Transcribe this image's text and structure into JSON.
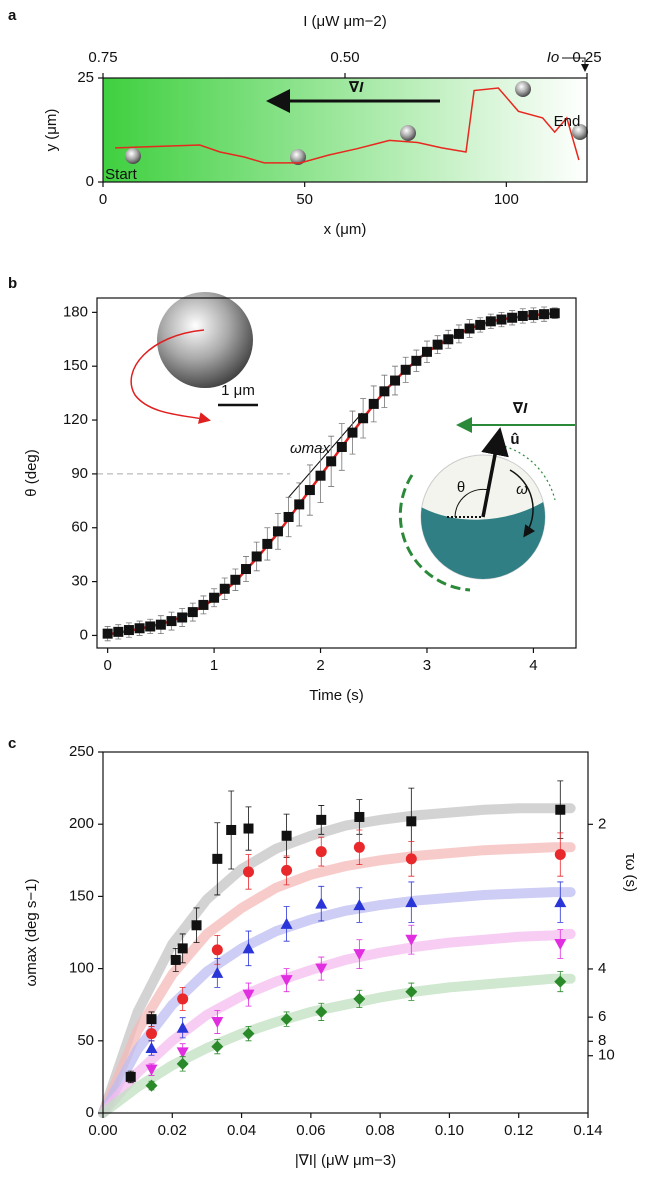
{
  "chart_data": [
    {
      "type": "line",
      "panel": "a",
      "x": [
        3,
        12,
        24,
        29,
        35,
        40,
        49,
        56,
        63,
        71,
        78,
        84,
        90,
        92,
        98,
        103,
        109,
        112,
        115,
        118
      ],
      "values": [
        8.2,
        8.5,
        8.9,
        7.2,
        6.0,
        4.6,
        4.6,
        6.5,
        8.0,
        10.0,
        9.5,
        8.2,
        7.2,
        22.0,
        22.6,
        17.0,
        15.4,
        12.0,
        15.4,
        5.3
      ],
      "color": "#e8281e",
      "xlabel": "x (μm)",
      "ylabel": "y (μm)",
      "x2label": "I (μW μm−2)",
      "xlim": [
        0,
        120
      ],
      "xticks": [
        0,
        50,
        100
      ],
      "ylim": [
        0,
        25
      ],
      "yticks": [
        0,
        25
      ],
      "x2lim": [
        0.75,
        0.25
      ],
      "x2ticks": [
        {
          "value": 0.75,
          "label": "0.75"
        },
        {
          "value": 0.5,
          "label": "0.50"
        },
        {
          "value": 0.25,
          "label": "0.25"
        }
      ],
      "background": [
        "#3fd03f",
        "#ffffff"
      ],
      "annotations": {
        "start": "Start",
        "end": "End",
        "gradient": "∇I",
        "intensity": "Io"
      }
    },
    {
      "type": "scatter",
      "panel": "b",
      "x": [
        0,
        0.1,
        0.2,
        0.3,
        0.4,
        0.5,
        0.6,
        0.7,
        0.8,
        0.9,
        1.0,
        1.1,
        1.2,
        1.3,
        1.4,
        1.5,
        1.6,
        1.7,
        1.8,
        1.9,
        2.0,
        2.1,
        2.2,
        2.3,
        2.4,
        2.5,
        2.6,
        2.7,
        2.8,
        2.9,
        3.0,
        3.1,
        3.2,
        3.3,
        3.4,
        3.5,
        3.6,
        3.7,
        3.8,
        3.9,
        4.0,
        4.1,
        4.2
      ],
      "values": [
        1,
        2,
        3,
        4,
        5,
        6,
        8,
        10,
        13,
        17,
        21,
        26,
        31,
        37,
        44,
        51,
        58,
        66,
        73,
        81,
        89,
        97,
        105,
        113,
        121,
        129,
        136,
        142,
        148,
        153,
        158,
        162,
        165,
        168,
        171,
        173,
        175,
        176,
        177,
        178,
        178.5,
        179,
        179.5
      ],
      "errors": [
        4,
        4,
        4,
        4,
        4,
        5,
        5,
        5,
        5,
        5,
        5,
        6,
        6,
        7,
        8,
        9,
        10,
        11,
        12,
        14,
        15,
        14,
        13,
        12,
        11,
        10,
        9,
        8,
        7,
        6,
        6,
        5,
        5,
        5,
        5,
        4,
        4,
        4,
        4,
        4,
        4,
        4,
        3
      ],
      "color": "#111111",
      "marker": "square",
      "fits": [
        {
          "x": [
            0,
            0.2,
            0.4,
            0.6,
            0.8,
            1.0,
            1.2,
            1.4,
            1.6,
            1.8,
            2.0,
            2.2,
            2.4,
            2.6,
            2.8,
            3.0,
            3.2,
            3.4,
            3.6,
            3.8,
            4.0,
            4.2
          ],
          "values": [
            0.5,
            2.5,
            5,
            8,
            13,
            20,
            30,
            43,
            57,
            73,
            89,
            105,
            121,
            136,
            148,
            158,
            165,
            171,
            175,
            177,
            178.5,
            179.5
          ],
          "color": "#e02020"
        }
      ],
      "reference_line": 90,
      "xlabel": "Time (s)",
      "ylabel": "θ (deg)",
      "xlim": [
        -0.1,
        4.4
      ],
      "xticks": [
        0,
        1,
        2,
        3,
        4
      ],
      "ylim": [
        -7,
        188
      ],
      "yticks": [
        0,
        30,
        60,
        90,
        120,
        150,
        180
      ],
      "annotations": {
        "omega_max": "ωmax",
        "scale": "1 μm",
        "gradient": "∇I",
        "unit_vector": "û",
        "theta": "θ",
        "omega": "ω"
      }
    },
    {
      "type": "scatter",
      "panel": "c",
      "series": [
        {
          "color": "#111111",
          "marker": "square",
          "x": [
            0.008,
            0.014,
            0.021,
            0.023,
            0.027,
            0.033,
            0.037,
            0.042,
            0.053,
            0.063,
            0.074,
            0.089,
            0.132
          ],
          "values": [
            25,
            65,
            106,
            114,
            130,
            176,
            196,
            197,
            192,
            203,
            205,
            202,
            210
          ],
          "errors": [
            4,
            5,
            8,
            10,
            12,
            25,
            27,
            15,
            15,
            10,
            12,
            23,
            20
          ]
        },
        {
          "color": "#e8282b",
          "marker": "circle",
          "x": [
            0.014,
            0.023,
            0.033,
            0.042,
            0.053,
            0.063,
            0.074,
            0.089,
            0.132
          ],
          "values": [
            55,
            79,
            113,
            167,
            168,
            181,
            184,
            176,
            179
          ],
          "errors": [
            5,
            8,
            10,
            12,
            10,
            10,
            12,
            12,
            15
          ]
        },
        {
          "color": "#2a35d8",
          "marker": "triangle-up",
          "x": [
            0.014,
            0.023,
            0.033,
            0.042,
            0.053,
            0.063,
            0.074,
            0.089,
            0.132
          ],
          "values": [
            45,
            59,
            97,
            114,
            131,
            145,
            144,
            146,
            146
          ],
          "errors": [
            5,
            7,
            10,
            12,
            12,
            12,
            12,
            14,
            14
          ]
        },
        {
          "color": "#e02ee0",
          "marker": "triangle-down",
          "x": [
            0.014,
            0.023,
            0.033,
            0.042,
            0.053,
            0.063,
            0.074,
            0.089,
            0.132
          ],
          "values": [
            30,
            42,
            63,
            82,
            92,
            100,
            110,
            120,
            117
          ],
          "errors": [
            4,
            6,
            8,
            8,
            8,
            8,
            10,
            10,
            10
          ]
        },
        {
          "color": "#2a8a2a",
          "marker": "diamond",
          "x": [
            0.014,
            0.023,
            0.033,
            0.042,
            0.053,
            0.063,
            0.074,
            0.089,
            0.132
          ],
          "values": [
            19,
            34,
            46,
            55,
            65,
            70,
            79,
            84,
            91
          ],
          "errors": [
            3,
            5,
            5,
            5,
            5,
            6,
            6,
            6,
            7
          ]
        }
      ],
      "fits": [
        {
          "color": "#c4c4c4",
          "x": [
            0,
            0.01,
            0.02,
            0.03,
            0.04,
            0.05,
            0.06,
            0.07,
            0.08,
            0.09,
            0.1,
            0.11,
            0.12,
            0.13,
            0.135
          ],
          "values": [
            0,
            70,
            117,
            148,
            169,
            183,
            192,
            199,
            203,
            206,
            208,
            210,
            211,
            211,
            211
          ]
        },
        {
          "color": "#f6b9b9",
          "x": [
            0,
            0.01,
            0.02,
            0.03,
            0.04,
            0.05,
            0.06,
            0.07,
            0.08,
            0.09,
            0.1,
            0.11,
            0.12,
            0.13,
            0.135
          ],
          "values": [
            0,
            57,
            96,
            124,
            142,
            156,
            165,
            171,
            175,
            178,
            180,
            182,
            183,
            184,
            184
          ]
        },
        {
          "color": "#bcbcf2",
          "x": [
            0,
            0.01,
            0.02,
            0.03,
            0.04,
            0.05,
            0.06,
            0.07,
            0.08,
            0.09,
            0.1,
            0.11,
            0.12,
            0.13,
            0.135
          ],
          "values": [
            0,
            44,
            75,
            98,
            114,
            126,
            134,
            140,
            144,
            147,
            149,
            151,
            152,
            153,
            153
          ]
        },
        {
          "color": "#f4bcef",
          "x": [
            0,
            0.01,
            0.02,
            0.03,
            0.04,
            0.05,
            0.06,
            0.07,
            0.08,
            0.09,
            0.1,
            0.11,
            0.12,
            0.13,
            0.135
          ],
          "values": [
            0,
            28,
            50,
            68,
            81,
            91,
            99,
            106,
            111,
            115,
            118,
            120,
            122,
            123,
            124
          ]
        },
        {
          "color": "#c0dfc0",
          "x": [
            0,
            0.01,
            0.02,
            0.03,
            0.04,
            0.05,
            0.06,
            0.07,
            0.08,
            0.09,
            0.1,
            0.11,
            0.12,
            0.13,
            0.135
          ],
          "values": [
            0,
            18,
            33,
            45,
            55,
            63,
            70,
            75,
            80,
            84,
            87,
            89,
            91,
            93,
            93
          ]
        }
      ],
      "xlabel": "|∇I| (μW μm−3)",
      "ylabel": "ωmax (deg s−1)",
      "y2label": "τω (s)",
      "xlim": [
        0,
        0.14
      ],
      "xticks": [
        {
          "value": 0,
          "label": "0.00"
        },
        {
          "value": 0.02,
          "label": "0.02"
        },
        {
          "value": 0.04,
          "label": "0.04"
        },
        {
          "value": 0.06,
          "label": "0.06"
        },
        {
          "value": 0.08,
          "label": "0.08"
        },
        {
          "value": 0.1,
          "label": "0.10"
        },
        {
          "value": 0.12,
          "label": "0.12"
        },
        {
          "value": 0.14,
          "label": "0.14"
        }
      ],
      "ylim": [
        0,
        250
      ],
      "yticks": [
        0,
        50,
        100,
        150,
        200,
        250
      ],
      "y2_scale": "reciprocal",
      "y2lim": [
        1000,
        1.6
      ],
      "y2ticks": [
        2,
        4,
        6,
        8,
        10
      ]
    }
  ]
}
